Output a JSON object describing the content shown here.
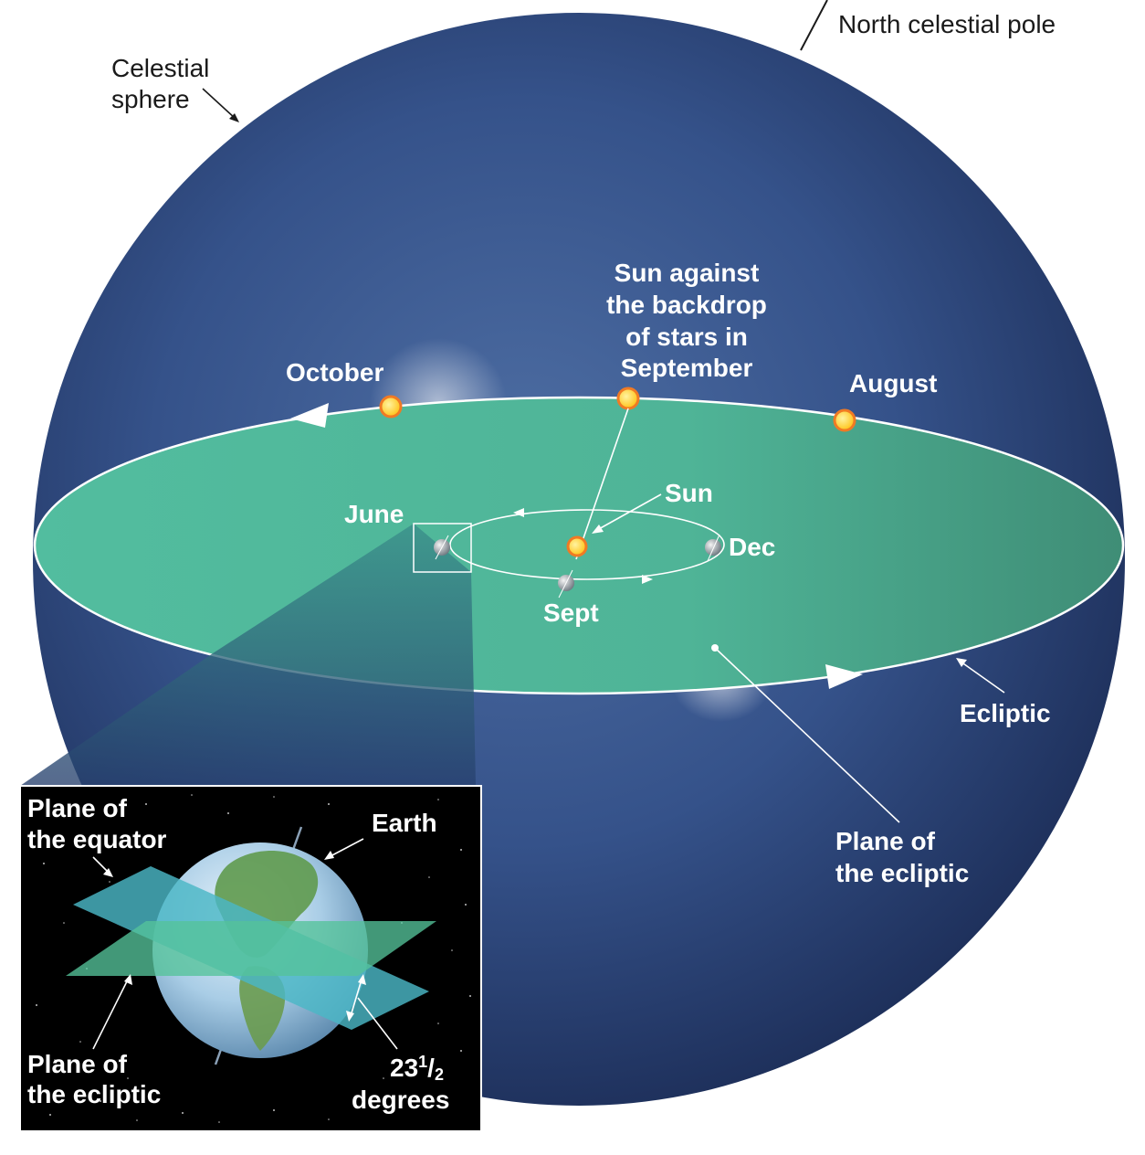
{
  "colors": {
    "sphere_light": "#4e6ea3",
    "sphere_dark": "#1c2d57",
    "ecliptic_plane": "#4fb497",
    "sun_fill": "#ffd42a",
    "sun_ring": "#f07a24",
    "inset_background": "#000000"
  },
  "labels": {
    "north_celestial_pole": "North celestial pole",
    "celestial_sphere_line1": "Celestial",
    "celestial_sphere_line2": "sphere",
    "sun_backdrop_line1": "Sun against",
    "sun_backdrop_line2": "the backdrop",
    "sun_backdrop_line3": "of stars in",
    "sun_backdrop_line4": "September",
    "october": "October",
    "august": "August",
    "june": "June",
    "sun": "Sun",
    "dec": "Dec",
    "sept": "Sept",
    "ecliptic": "Ecliptic",
    "plane_of_ecliptic_line1": "Plane of",
    "plane_of_ecliptic_line2": "the ecliptic"
  },
  "inset": {
    "plane_equator_line1": "Plane of",
    "plane_equator_line2": "the equator",
    "earth": "Earth",
    "plane_ecliptic_line1": "Plane of",
    "plane_ecliptic_line2": "the ecliptic",
    "angle_whole": "23",
    "angle_num": "1",
    "angle_slash": "/",
    "angle_den": "2",
    "angle_line2": "degrees"
  }
}
